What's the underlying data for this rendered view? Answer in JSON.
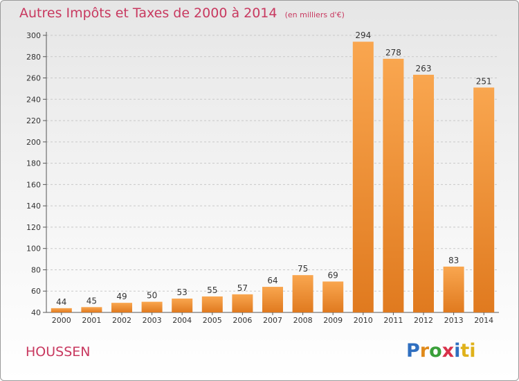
{
  "header": {
    "title": "Autres Impôts et Taxes de 2000 à 2014",
    "unit": "(en milliers d'€)"
  },
  "footer": {
    "place": "HOUSSEN",
    "logo": [
      "P",
      "r",
      "o",
      "x",
      "i",
      "ti"
    ]
  },
  "colors": {
    "title": "#c8385f",
    "bar_light": "#f9a64f",
    "bar_dark": "#e07a1f",
    "grid": "#c8c8c8"
  },
  "chart_data": {
    "type": "bar",
    "title": "Autres Impôts et Taxes de 2000 à 2014",
    "subtitle": "(en milliers d'€)",
    "categories": [
      "2000",
      "2001",
      "2002",
      "2003",
      "2004",
      "2005",
      "2006",
      "2007",
      "2008",
      "2009",
      "2010",
      "2011",
      "2012",
      "2013",
      "2014"
    ],
    "values": [
      44,
      45,
      49,
      50,
      53,
      55,
      57,
      64,
      75,
      69,
      294,
      278,
      263,
      83,
      251
    ],
    "yticks": [
      40,
      60,
      80,
      100,
      120,
      140,
      160,
      180,
      200,
      220,
      240,
      260,
      280,
      300
    ],
    "ylim": [
      40,
      300
    ],
    "grid": true,
    "xlabel": "",
    "ylabel": ""
  }
}
